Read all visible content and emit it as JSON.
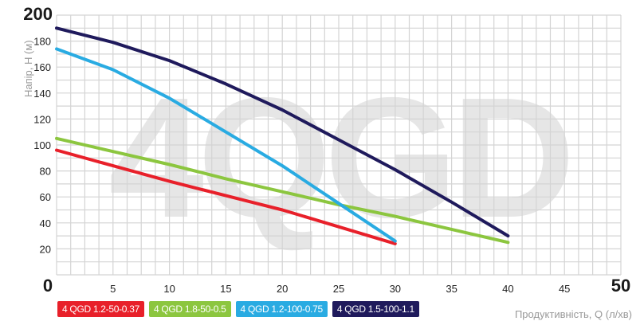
{
  "chart_data": {
    "type": "line",
    "watermark": "4QGD",
    "xlabel": "Продуктивність, Q (л/хв)",
    "ylabel": "Напір, Н (м)",
    "xlim": [
      0,
      50
    ],
    "ylim": [
      0,
      200
    ],
    "x_ticks": [
      "0",
      "5",
      "10",
      "15",
      "20",
      "25",
      "30",
      "35",
      "40",
      "45",
      "50"
    ],
    "y_ticks": [
      "20",
      "40",
      "60",
      "80",
      "100",
      "120",
      "140",
      "160",
      "180",
      "200"
    ],
    "grid": true,
    "legend_position": "bottom",
    "series": [
      {
        "name": "4 QGD 1.2-50-0.37",
        "color": "#e8202a",
        "x": [
          0,
          5,
          10,
          15,
          20,
          25,
          30
        ],
        "y": [
          96,
          84,
          72,
          61,
          50,
          37,
          24
        ]
      },
      {
        "name": "4 QGD 1.8-50-0.5",
        "color": "#8cc63f",
        "x": [
          0,
          5,
          10,
          15,
          20,
          25,
          30,
          35,
          40
        ],
        "y": [
          105,
          95,
          85,
          74,
          64,
          54,
          45,
          35,
          25
        ]
      },
      {
        "name": "4 QGD 1.2-100-0.75",
        "color": "#29abe2",
        "x": [
          0,
          5,
          10,
          15,
          20,
          25,
          30
        ],
        "y": [
          174,
          158,
          136,
          110,
          84,
          55,
          26
        ]
      },
      {
        "name": "4 QGD 1.5-100-1.1",
        "color": "#1f1a5c",
        "x": [
          0,
          5,
          10,
          15,
          20,
          25,
          30,
          35,
          40
        ],
        "y": [
          190,
          179,
          165,
          147,
          127,
          104,
          81,
          56,
          30
        ]
      }
    ]
  }
}
